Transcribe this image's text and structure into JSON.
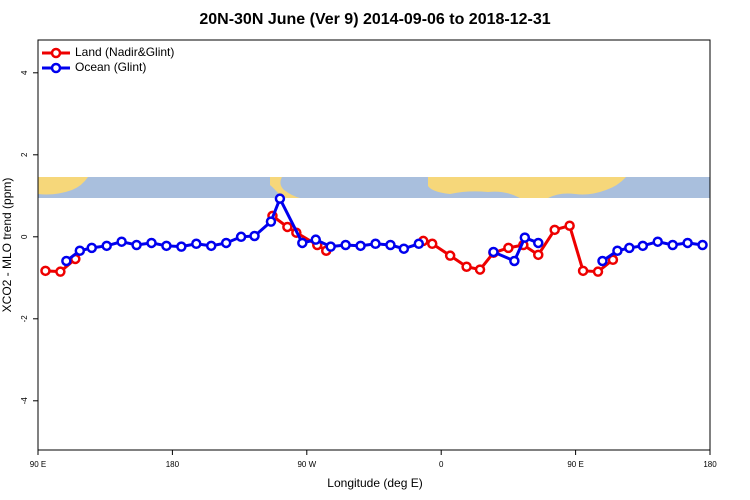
{
  "chart_data": {
    "type": "line",
    "title": "20N-30N June (Ver 9)   2014-09-06 to 2018-12-31",
    "x_label": "Longitude (deg E)",
    "y_label": "XCO2 - MLO trend (ppm)",
    "xlim": [
      90,
      540
    ],
    "xticks": [
      {
        "value": 90,
        "label": "90 E"
      },
      {
        "value": 180,
        "label": "180"
      },
      {
        "value": 270,
        "label": "90 W"
      },
      {
        "value": 360,
        "label": "0"
      },
      {
        "value": 450,
        "label": "90 E"
      },
      {
        "value": 540,
        "label": "180"
      }
    ],
    "ylim": [
      -5.2,
      4.8
    ],
    "yticks": [
      -4,
      -2,
      0,
      2,
      4
    ],
    "legend": "top-left",
    "series": [
      {
        "name": "Land (Nadir&Glint)",
        "color": "#ee0000",
        "x": [
          95,
          105,
          115,
          200,
          247,
          257,
          263,
          277,
          283,
          315,
          348,
          354,
          366,
          377,
          386,
          395,
          405,
          415,
          425,
          436,
          446,
          455,
          465,
          475
        ],
        "values": [
          -0.83,
          -0.85,
          -0.54,
          null,
          0.51,
          0.24,
          0.1,
          -0.2,
          -0.34,
          null,
          -0.1,
          -0.17,
          -0.46,
          -0.73,
          -0.8,
          -0.39,
          -0.27,
          -0.2,
          -0.44,
          0.17,
          0.27,
          -0.83,
          -0.85,
          -0.56
        ]
      },
      {
        "name": "Ocean (Glint)",
        "color": "#0000ee",
        "x": [
          109,
          118,
          126,
          136,
          146,
          156,
          166,
          176,
          186,
          196,
          206,
          216,
          226,
          235,
          246,
          252,
          267,
          276,
          286,
          296,
          306,
          316,
          326,
          335,
          345,
          370,
          395,
          409,
          416,
          425,
          445,
          468,
          478,
          486,
          495,
          505,
          515,
          525,
          535
        ],
        "values": [
          -0.59,
          -0.34,
          -0.27,
          -0.22,
          -0.12,
          -0.2,
          -0.15,
          -0.22,
          -0.24,
          -0.17,
          -0.22,
          -0.15,
          0,
          0.02,
          0.37,
          0.93,
          -0.15,
          -0.07,
          -0.24,
          -0.2,
          -0.22,
          -0.17,
          -0.2,
          -0.29,
          -0.17,
          null,
          -0.37,
          -0.59,
          -0.02,
          -0.15,
          null,
          -0.59,
          -0.34,
          -0.27,
          -0.22,
          -0.12,
          -0.2,
          -0.15,
          -0.2
        ]
      }
    ]
  }
}
